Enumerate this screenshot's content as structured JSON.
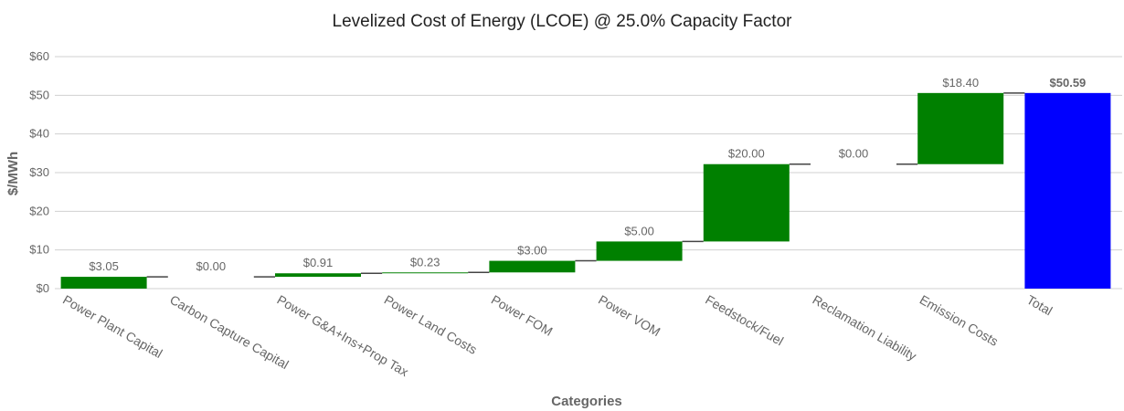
{
  "chart_data": {
    "type": "waterfall",
    "title": "Levelized Cost of Energy (LCOE) @ 25.0% Capacity Factor",
    "xlabel": "Categories",
    "ylabel": "$/MWh",
    "ylim": [
      0,
      60
    ],
    "yticks": [
      0,
      10,
      20,
      30,
      40,
      50,
      60
    ],
    "ytick_labels": [
      "$0",
      "$10",
      "$20",
      "$30",
      "$40",
      "$50",
      "$60"
    ],
    "grid": true,
    "legend": false,
    "categories": [
      "Power Plant Capital",
      "Carbon Capture Capital",
      "Power G&A+Ins+Prop Tax",
      "Power Land Costs",
      "Power FOM",
      "Power VOM",
      "Feedstock/Fuel",
      "Reclamation Liability",
      "Emission Costs",
      "Total"
    ],
    "values": [
      3.05,
      0.0,
      0.91,
      0.23,
      3.0,
      5.0,
      20.0,
      0.0,
      18.4,
      50.59
    ],
    "labels": [
      "$3.05",
      "$0.00",
      "$0.91",
      "$0.23",
      "$3.00",
      "$5.00",
      "$20.00",
      "$0.00",
      "$18.40",
      "$50.59"
    ],
    "is_total": [
      false,
      false,
      false,
      false,
      false,
      false,
      false,
      false,
      false,
      true
    ],
    "colors": {
      "increase": "#008000",
      "total": "#0000ff",
      "connector": "#444444",
      "grid": "#d0d0d0"
    }
  }
}
